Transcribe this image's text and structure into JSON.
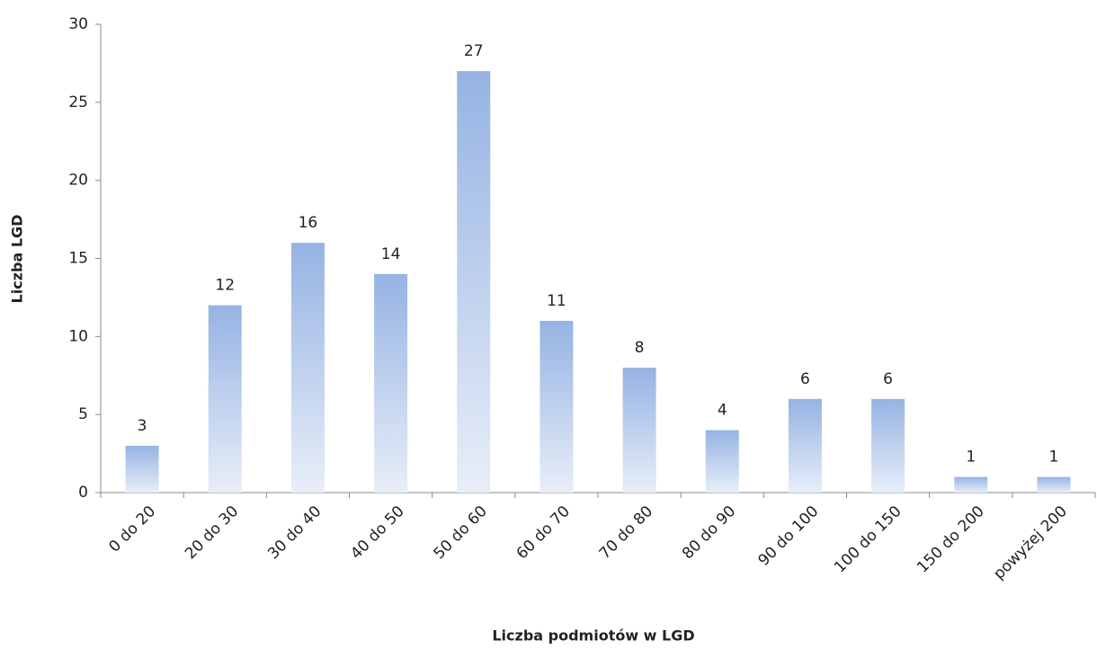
{
  "chart_data": {
    "type": "bar",
    "x_label": "Liczba podmiotów  w LGD",
    "y_label": "Liczba LGD",
    "categories": [
      "0 do 20",
      "20 do 30",
      "30 do 40",
      "40 do 50",
      "50 do 60",
      "60 do 70",
      "70 do 80",
      "80 do 90",
      "90 do 100",
      "100 do 150",
      "150 do 200",
      "powyżej 200"
    ],
    "values": [
      3,
      12,
      16,
      14,
      27,
      11,
      8,
      4,
      6,
      6,
      1,
      1
    ],
    "color": "#95b3e3",
    "ylim": [
      0,
      30
    ],
    "yticks": [
      0,
      5,
      10,
      15,
      20,
      25,
      30
    ],
    "grid": false
  }
}
